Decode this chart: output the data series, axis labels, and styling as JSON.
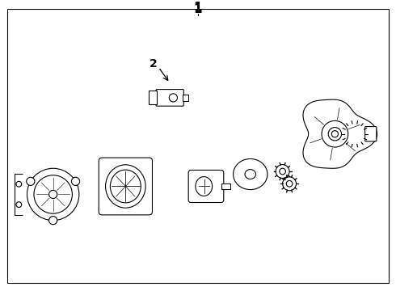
{
  "title_number": "1",
  "part2_label": "2",
  "bg_color": "#ffffff",
  "line_color": "#000000",
  "border_color": "#000000",
  "fig_width": 4.9,
  "fig_height": 3.6,
  "dpi": 100
}
